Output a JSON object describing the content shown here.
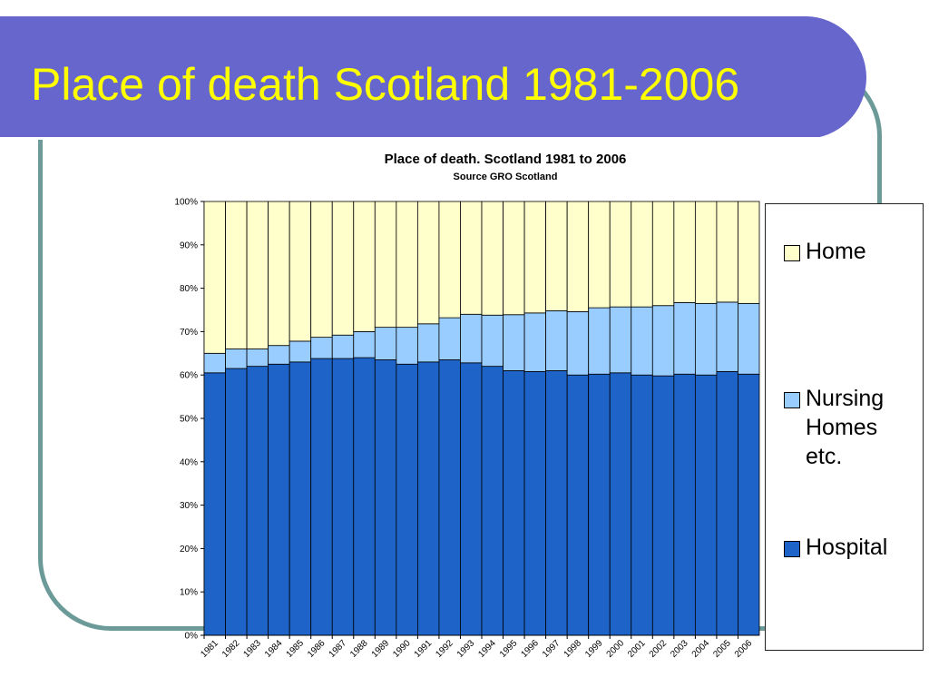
{
  "slide": {
    "title": "Place of death Scotland 1981-2006",
    "banner_color": "#6666cc",
    "title_color": "#ffff00",
    "frame_color": "#6b9a98"
  },
  "chart_data": {
    "type": "bar",
    "stacked": true,
    "percent_stacked": true,
    "title": "Place of death. Scotland 1981 to 2006",
    "subtitle": "Source GRO Scotland",
    "xlabel": "",
    "ylabel": "",
    "ylim": [
      0,
      100
    ],
    "y_ticks": [
      "0%",
      "10%",
      "20%",
      "30%",
      "40%",
      "50%",
      "60%",
      "70%",
      "80%",
      "90%",
      "100%"
    ],
    "grid": false,
    "legend_position": "right",
    "categories": [
      "1981",
      "1982",
      "1983",
      "1984",
      "1985",
      "1986",
      "1987",
      "1988",
      "1989",
      "1990",
      "1991",
      "1992",
      "1993",
      "1994",
      "1995",
      "1996",
      "1997",
      "1998",
      "1999",
      "2000",
      "2001",
      "2002",
      "2003",
      "2004",
      "2005",
      "2006"
    ],
    "series": [
      {
        "name": "Hospital",
        "color": "#1e64c8",
        "values": [
          60.5,
          61.5,
          62,
          62.5,
          63,
          63.8,
          63.8,
          64,
          63.5,
          62.5,
          63,
          63.5,
          62.8,
          62,
          61,
          60.8,
          61,
          60,
          60.2,
          60.5,
          60,
          59.8,
          60.2,
          60,
          60.8,
          60.2
        ]
      },
      {
        "name": "Nursing Homes etc.",
        "color": "#99ccff",
        "values": [
          4.5,
          4.5,
          4,
          4.3,
          4.8,
          4.9,
          5.4,
          6,
          7.5,
          8.5,
          8.8,
          9.7,
          11.2,
          11.8,
          12.9,
          13.5,
          13.8,
          14.6,
          15.3,
          15.2,
          15.7,
          16.2,
          16.5,
          16.5,
          16,
          16.3
        ]
      },
      {
        "name": "Home",
        "color": "#ffffcc",
        "values": [
          35,
          34,
          34,
          33.2,
          32.2,
          31.3,
          30.8,
          30,
          29,
          29,
          28.2,
          26.8,
          26,
          26.2,
          26.1,
          25.7,
          25.2,
          25.4,
          24.5,
          24.3,
          24.3,
          24,
          23.3,
          23.5,
          23.2,
          23.5
        ]
      }
    ]
  },
  "legend": {
    "items": [
      {
        "label": "Home",
        "color": "#ffffcc"
      },
      {
        "label": "Nursing Homes etc.",
        "color": "#99ccff"
      },
      {
        "label": "Hospital",
        "color": "#1e64c8"
      }
    ]
  }
}
